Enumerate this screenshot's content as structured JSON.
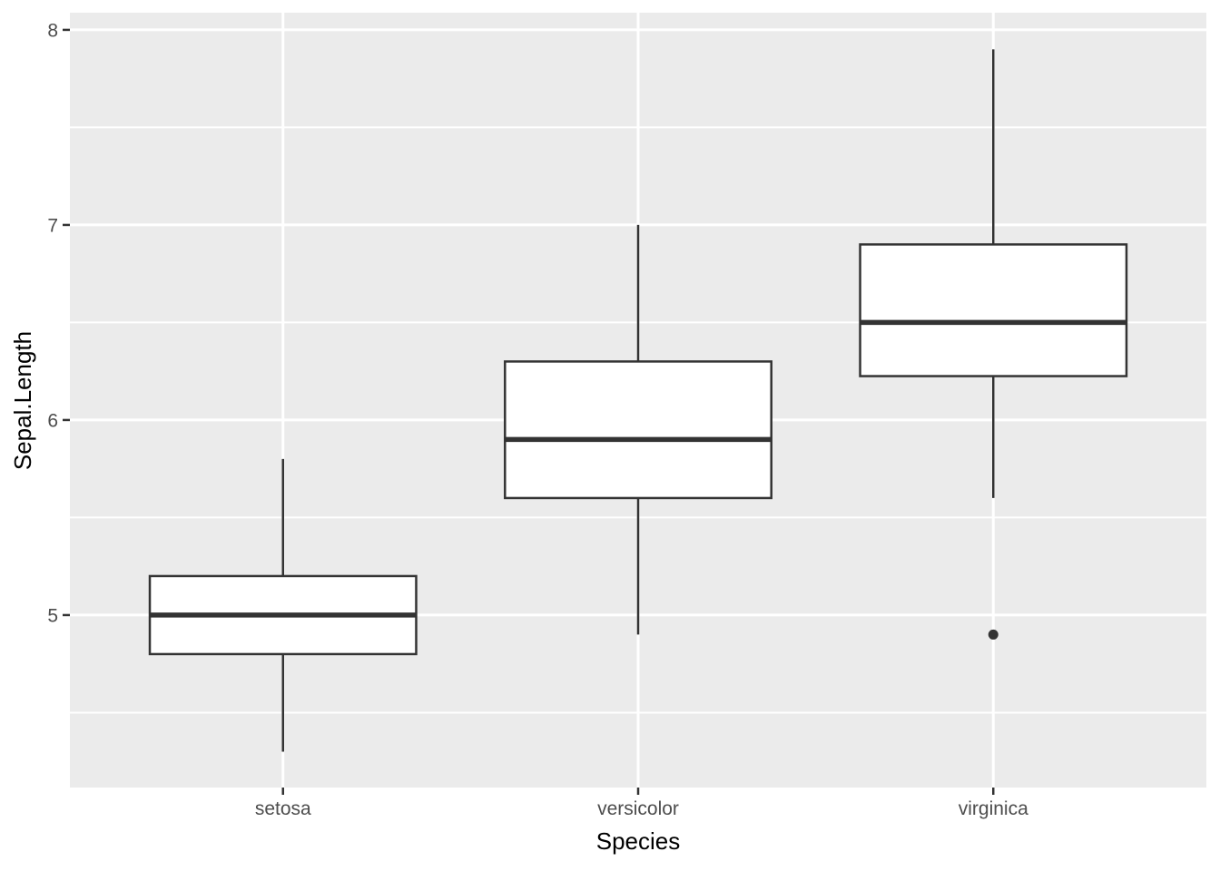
{
  "figure": {
    "background": "#FFFFFF",
    "panel_background": "#EBEBEB",
    "grid_color": "#FFFFFF",
    "axis_text_color": "#4D4D4D",
    "axis_title_color": "#000000",
    "tick_mark_color": "#333333",
    "box_stroke_color": "#333333",
    "box_fill_color": "#FFFFFF"
  },
  "chart_data": {
    "type": "boxplot",
    "title": "",
    "xlabel": "Species",
    "ylabel": "Sepal.Length",
    "categories": [
      "setosa",
      "versicolor",
      "virginica"
    ],
    "series": [
      {
        "name": "setosa",
        "position": 1,
        "whisker_low": 4.3,
        "q1": 4.8,
        "median": 5.0,
        "q3": 5.2,
        "whisker_high": 5.8,
        "outliers": []
      },
      {
        "name": "versicolor",
        "position": 2,
        "whisker_low": 4.9,
        "q1": 5.6,
        "median": 5.9,
        "q3": 6.3,
        "whisker_high": 7.0,
        "outliers": []
      },
      {
        "name": "virginica",
        "position": 3,
        "whisker_low": 5.6,
        "q1": 6.225,
        "median": 6.5,
        "q3": 6.9,
        "whisker_high": 7.9,
        "outliers": [
          4.9
        ]
      }
    ],
    "y_major_ticks": [
      5,
      6,
      7,
      8
    ],
    "y_minor_ticks": [
      4.5,
      5.5,
      6.5,
      7.5
    ],
    "ylim": [
      4.116,
      8.088
    ],
    "xlim": [
      0.4,
      3.6
    ],
    "box_width": 0.75,
    "grid": "major+minor horizontal white, major vertical white",
    "legend": "none"
  }
}
